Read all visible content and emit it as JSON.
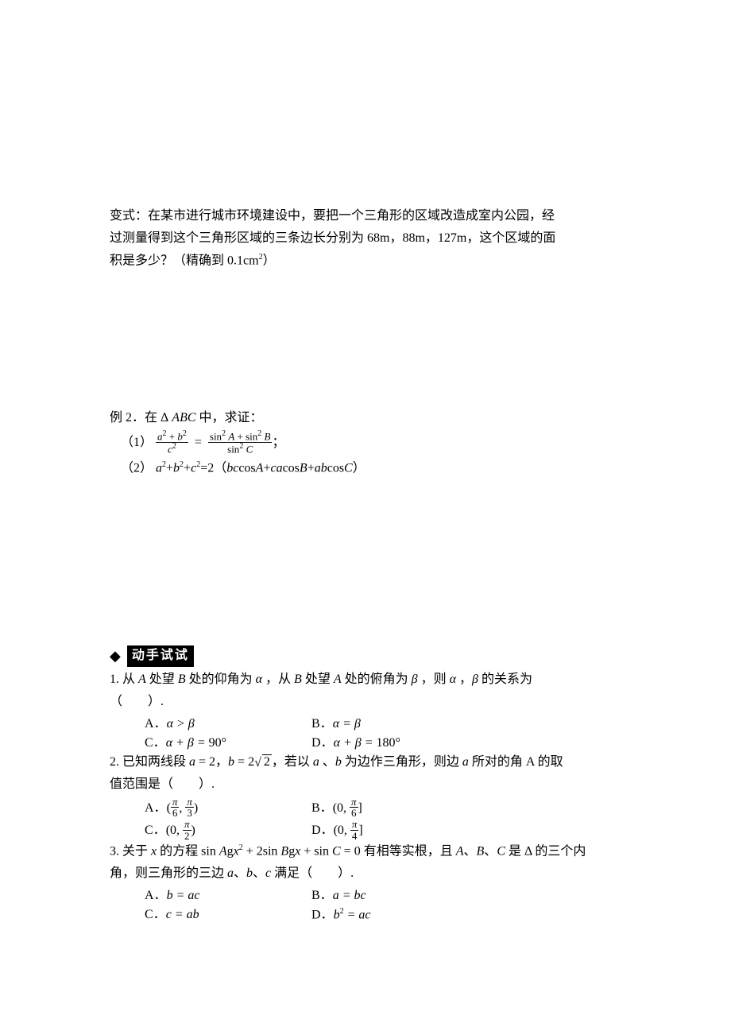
{
  "colors": {
    "text": "#000000",
    "bg": "#ffffff",
    "hdr_bg": "#000000",
    "hdr_fg": "#ffffff"
  },
  "p1_l1": "变式：在某市进行城市环境建设中，要把一个三角形的区域改造成室内公园，经",
  "p1_l2_a": "过测量得到这个三角形区域的三条边长分别为 68m，88m，127m，这个区域的面",
  "p1_l3_a": "积是多少？（精确到 0.1cm",
  "p1_l3_b": "）",
  "ex2_head_a": "例 2．在 Δ",
  "ex2_head_b": "中，求证：",
  "ex2_abc": " ABC ",
  "ex2_1_lbl": "（1）",
  "ex2_1_semi": "；",
  "frac1_num_a": "a",
  "frac1_num_b": "b",
  "frac1_den_c": "c",
  "frac2_num_a": "A",
  "frac2_num_b": "B",
  "frac2_den_c": "C",
  "sin": "sin",
  "cos": "cos",
  "plus": "+",
  "eq": "=",
  "sq": "2",
  "ex2_2_lbl": "（2）",
  "ex2_2_a": "a",
  "ex2_2_b": "b",
  "ex2_2_c": "c",
  "ex2_2_eq2": "=2（",
  "ex2_2_bc": "bc",
  "ex2_2_ca": "ca",
  "ex2_2_ab": "ab",
  "ex2_2_A": "A",
  "ex2_2_B": "B",
  "ex2_2_C": "C",
  "ex2_2_close": "）",
  "hdr_try": "动手试试",
  "q1_l1_a": "1. 从 ",
  "q1_l1_b": " 处望 ",
  "q1_l1_c": " 处的仰角为 ",
  "q1_l1_d": " ，从 ",
  "q1_l1_e": " 处望 ",
  "q1_l1_f": " 处的俯角为 ",
  "q1_l1_g": " ，则 ",
  "q1_l1_h": " ，",
  "q1_l1_i": " 的关系为",
  "q1_A": "A",
  "q1_B": "B",
  "alpha": "α",
  "beta": "β",
  "q1_l2": "（　　）.",
  "optA": "A．",
  "optB": "B．",
  "optC": "C．",
  "optD": "D．",
  "q1a": "α > β",
  "q1b": "α = β",
  "q1c_a": "α + β = ",
  "q1c_b": "90°",
  "q1d_a": "α + β = ",
  "q1d_b": "180°",
  "q2_l1_a": "2. 已知两线段 ",
  "q2_l1_b": " = 2，",
  "q2_l1_c": " = 2",
  "q2_l1_d": "，若以 ",
  "q2_l1_e": " 、",
  "q2_l1_f": " 为边作三角形，则边 ",
  "q2_l1_g": " 所对的角 A 的取",
  "q2_a": "a",
  "q2_b": "b",
  "sqrt2": "2",
  "q2_l2": "值范围是（　　）.",
  "q2a_open": "(",
  "q2a_comma": ", ",
  "q2a_close": ")",
  "q2b_open": "(0, ",
  "q2b_close": "]",
  "q2c_open": "(0, ",
  "q2c_close": ")",
  "q2d_open": "(0, ",
  "q2d_close": "]",
  "pi": "π",
  "six": "6",
  "three": "3",
  "two": "2",
  "four": "4",
  "q3_l1_a": "3. 关于 ",
  "q3_l1_b": " 的方程 ",
  "q3_l1_c": " 有相等实根，且 ",
  "q3_l1_d": "、",
  "q3_l1_e": " 是 Δ 的三个内",
  "q3_x": "x",
  "q3_eq_sinA": "sin ",
  "q3_eq_A": "A",
  "q3_eq_g": "g",
  "q3_eq_2sinB": " + 2sin ",
  "q3_eq_B": "B",
  "q3_eq_sinC": " + sin ",
  "q3_eq_C": "C",
  "q3_eq_0": " = 0",
  "q3_l2_a": "角，则三角形的三边 ",
  "q3_l2_b": "、",
  "q3_l2_c": " 满足（　　）.",
  "q3_sa": "a",
  "q3_sb": "b",
  "q3_sc": "c",
  "q3a": "b = ac",
  "q3b": "a = bc",
  "q3c": "c = ab",
  "q3d_a": "b",
  "q3d_b": " = ac"
}
